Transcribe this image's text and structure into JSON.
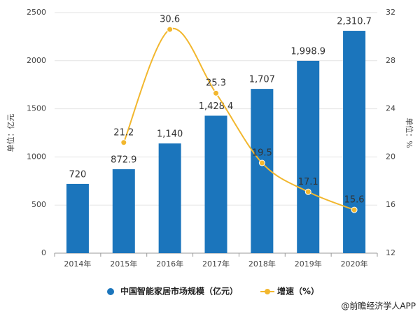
{
  "chart_data": {
    "type": "bar",
    "categories": [
      "2014年",
      "2015年",
      "2016年",
      "2017年",
      "2018年",
      "2019年",
      "2020年"
    ],
    "series": [
      {
        "name": "中国智能家居市场规模（亿元）",
        "type": "bar",
        "color": "#1b75bc",
        "values": [
          720,
          872.9,
          1140,
          1428.4,
          1707,
          1998.9,
          2310.7
        ],
        "value_labels": [
          "720",
          "872.9",
          "1,140",
          "1,428.4",
          "1,707",
          "1,998.9",
          "2,310.7"
        ]
      },
      {
        "name": "增速（%）",
        "type": "line",
        "axis": "y2",
        "color": "#f2b72e",
        "smooth": true,
        "values": [
          null,
          21.2,
          30.6,
          25.3,
          19.5,
          17.1,
          15.6
        ]
      }
    ],
    "ylabel": "单位：亿元",
    "y2label": "单位：%",
    "ylim": [
      0,
      2500
    ],
    "yticks": [
      0,
      500,
      1000,
      1500,
      2000,
      2500
    ],
    "y2lim": [
      12,
      32
    ],
    "y2ticks": [
      12,
      16,
      20,
      24,
      28,
      32
    ],
    "grid": true,
    "legend": "bottom",
    "source": "@前瞻经济学人APP"
  }
}
